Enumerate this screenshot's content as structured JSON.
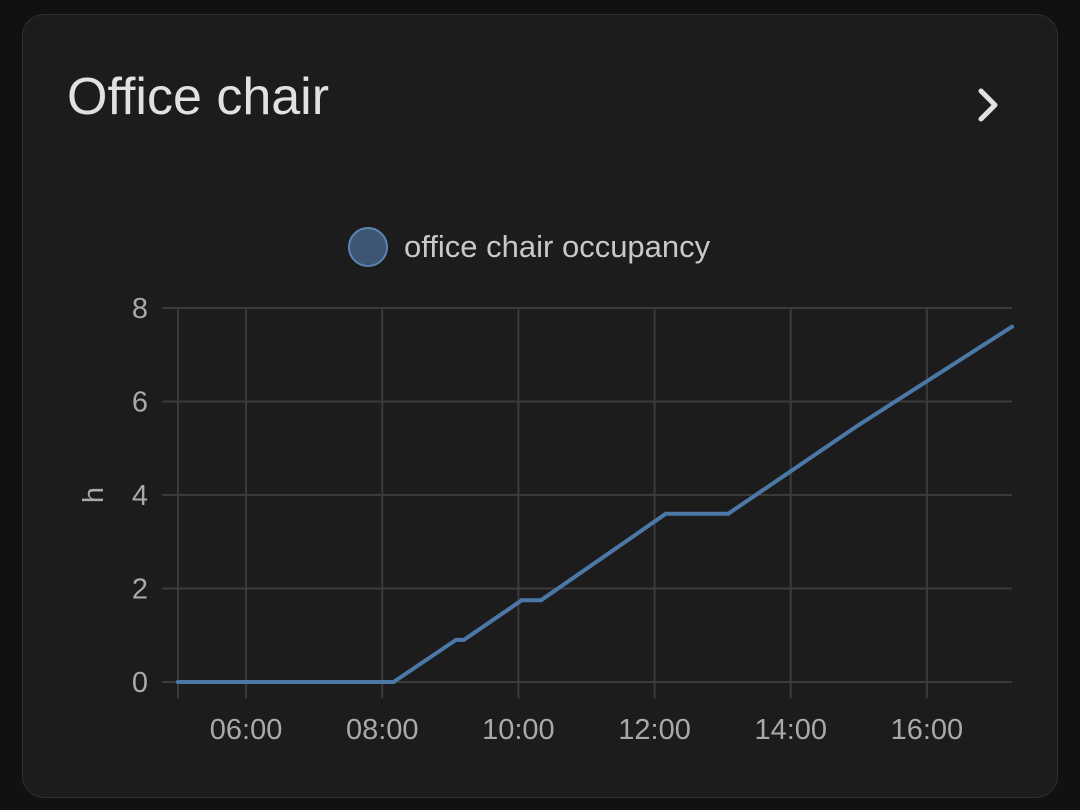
{
  "card": {
    "title": "Office chair",
    "more_icon": "chevron-right-icon"
  },
  "colors": {
    "background": "#111111",
    "card": "#1c1c1c",
    "series": "#4c78a8",
    "grid": "#3a3a3a"
  },
  "chart_data": {
    "type": "line",
    "ylabel": "h",
    "xlabel": "",
    "ylim": [
      0,
      8
    ],
    "y_ticks": [
      "0",
      "2",
      "4",
      "6",
      "8"
    ],
    "x_range": [
      "05:00",
      "17:15"
    ],
    "x_ticks": [
      "06:00",
      "08:00",
      "10:00",
      "12:00",
      "14:00",
      "16:00"
    ],
    "grid": true,
    "legend_position": "top-center",
    "series": [
      {
        "name": "office chair occupancy",
        "color": "#4c78a8",
        "points": [
          [
            "05:00",
            0
          ],
          [
            "08:10",
            0
          ],
          [
            "09:05",
            0.9
          ],
          [
            "09:12",
            0.9
          ],
          [
            "10:03",
            1.75
          ],
          [
            "10:20",
            1.75
          ],
          [
            "12:10",
            3.6
          ],
          [
            "13:05",
            3.6
          ],
          [
            "15:00",
            5.5
          ],
          [
            "17:15",
            7.6
          ]
        ]
      }
    ]
  }
}
